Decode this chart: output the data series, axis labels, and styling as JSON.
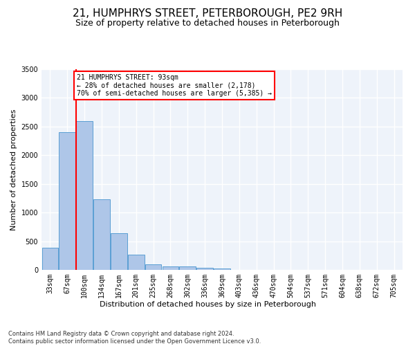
{
  "title": "21, HUMPHRYS STREET, PETERBOROUGH, PE2 9RH",
  "subtitle": "Size of property relative to detached houses in Peterborough",
  "xlabel": "Distribution of detached houses by size in Peterborough",
  "ylabel": "Number of detached properties",
  "footer_line1": "Contains HM Land Registry data © Crown copyright and database right 2024.",
  "footer_line2": "Contains public sector information licensed under the Open Government Licence v3.0.",
  "bar_labels": [
    "33sqm",
    "67sqm",
    "100sqm",
    "134sqm",
    "167sqm",
    "201sqm",
    "235sqm",
    "268sqm",
    "302sqm",
    "336sqm",
    "369sqm",
    "403sqm",
    "436sqm",
    "470sqm",
    "504sqm",
    "537sqm",
    "571sqm",
    "604sqm",
    "638sqm",
    "672sqm",
    "705sqm"
  ],
  "bar_values": [
    390,
    2400,
    2600,
    1230,
    640,
    260,
    100,
    60,
    55,
    40,
    30,
    0,
    0,
    0,
    0,
    0,
    0,
    0,
    0,
    0,
    0
  ],
  "bar_color": "#aec6e8",
  "bar_edge_color": "#5a9fd4",
  "vline_x_index": 2,
  "vline_color": "red",
  "annotation_title": "21 HUMPHRYS STREET: 93sqm",
  "annotation_line1": "← 28% of detached houses are smaller (2,178)",
  "annotation_line2": "70% of semi-detached houses are larger (5,385) →",
  "annotation_box_color": "white",
  "annotation_box_edge": "red",
  "ylim": [
    0,
    3500
  ],
  "yticks": [
    0,
    500,
    1000,
    1500,
    2000,
    2500,
    3000,
    3500
  ],
  "background_color": "#eef3fa",
  "grid_color": "white",
  "title_fontsize": 11,
  "subtitle_fontsize": 9,
  "axis_label_fontsize": 8,
  "tick_fontsize": 7,
  "annotation_fontsize": 7,
  "footer_fontsize": 6
}
